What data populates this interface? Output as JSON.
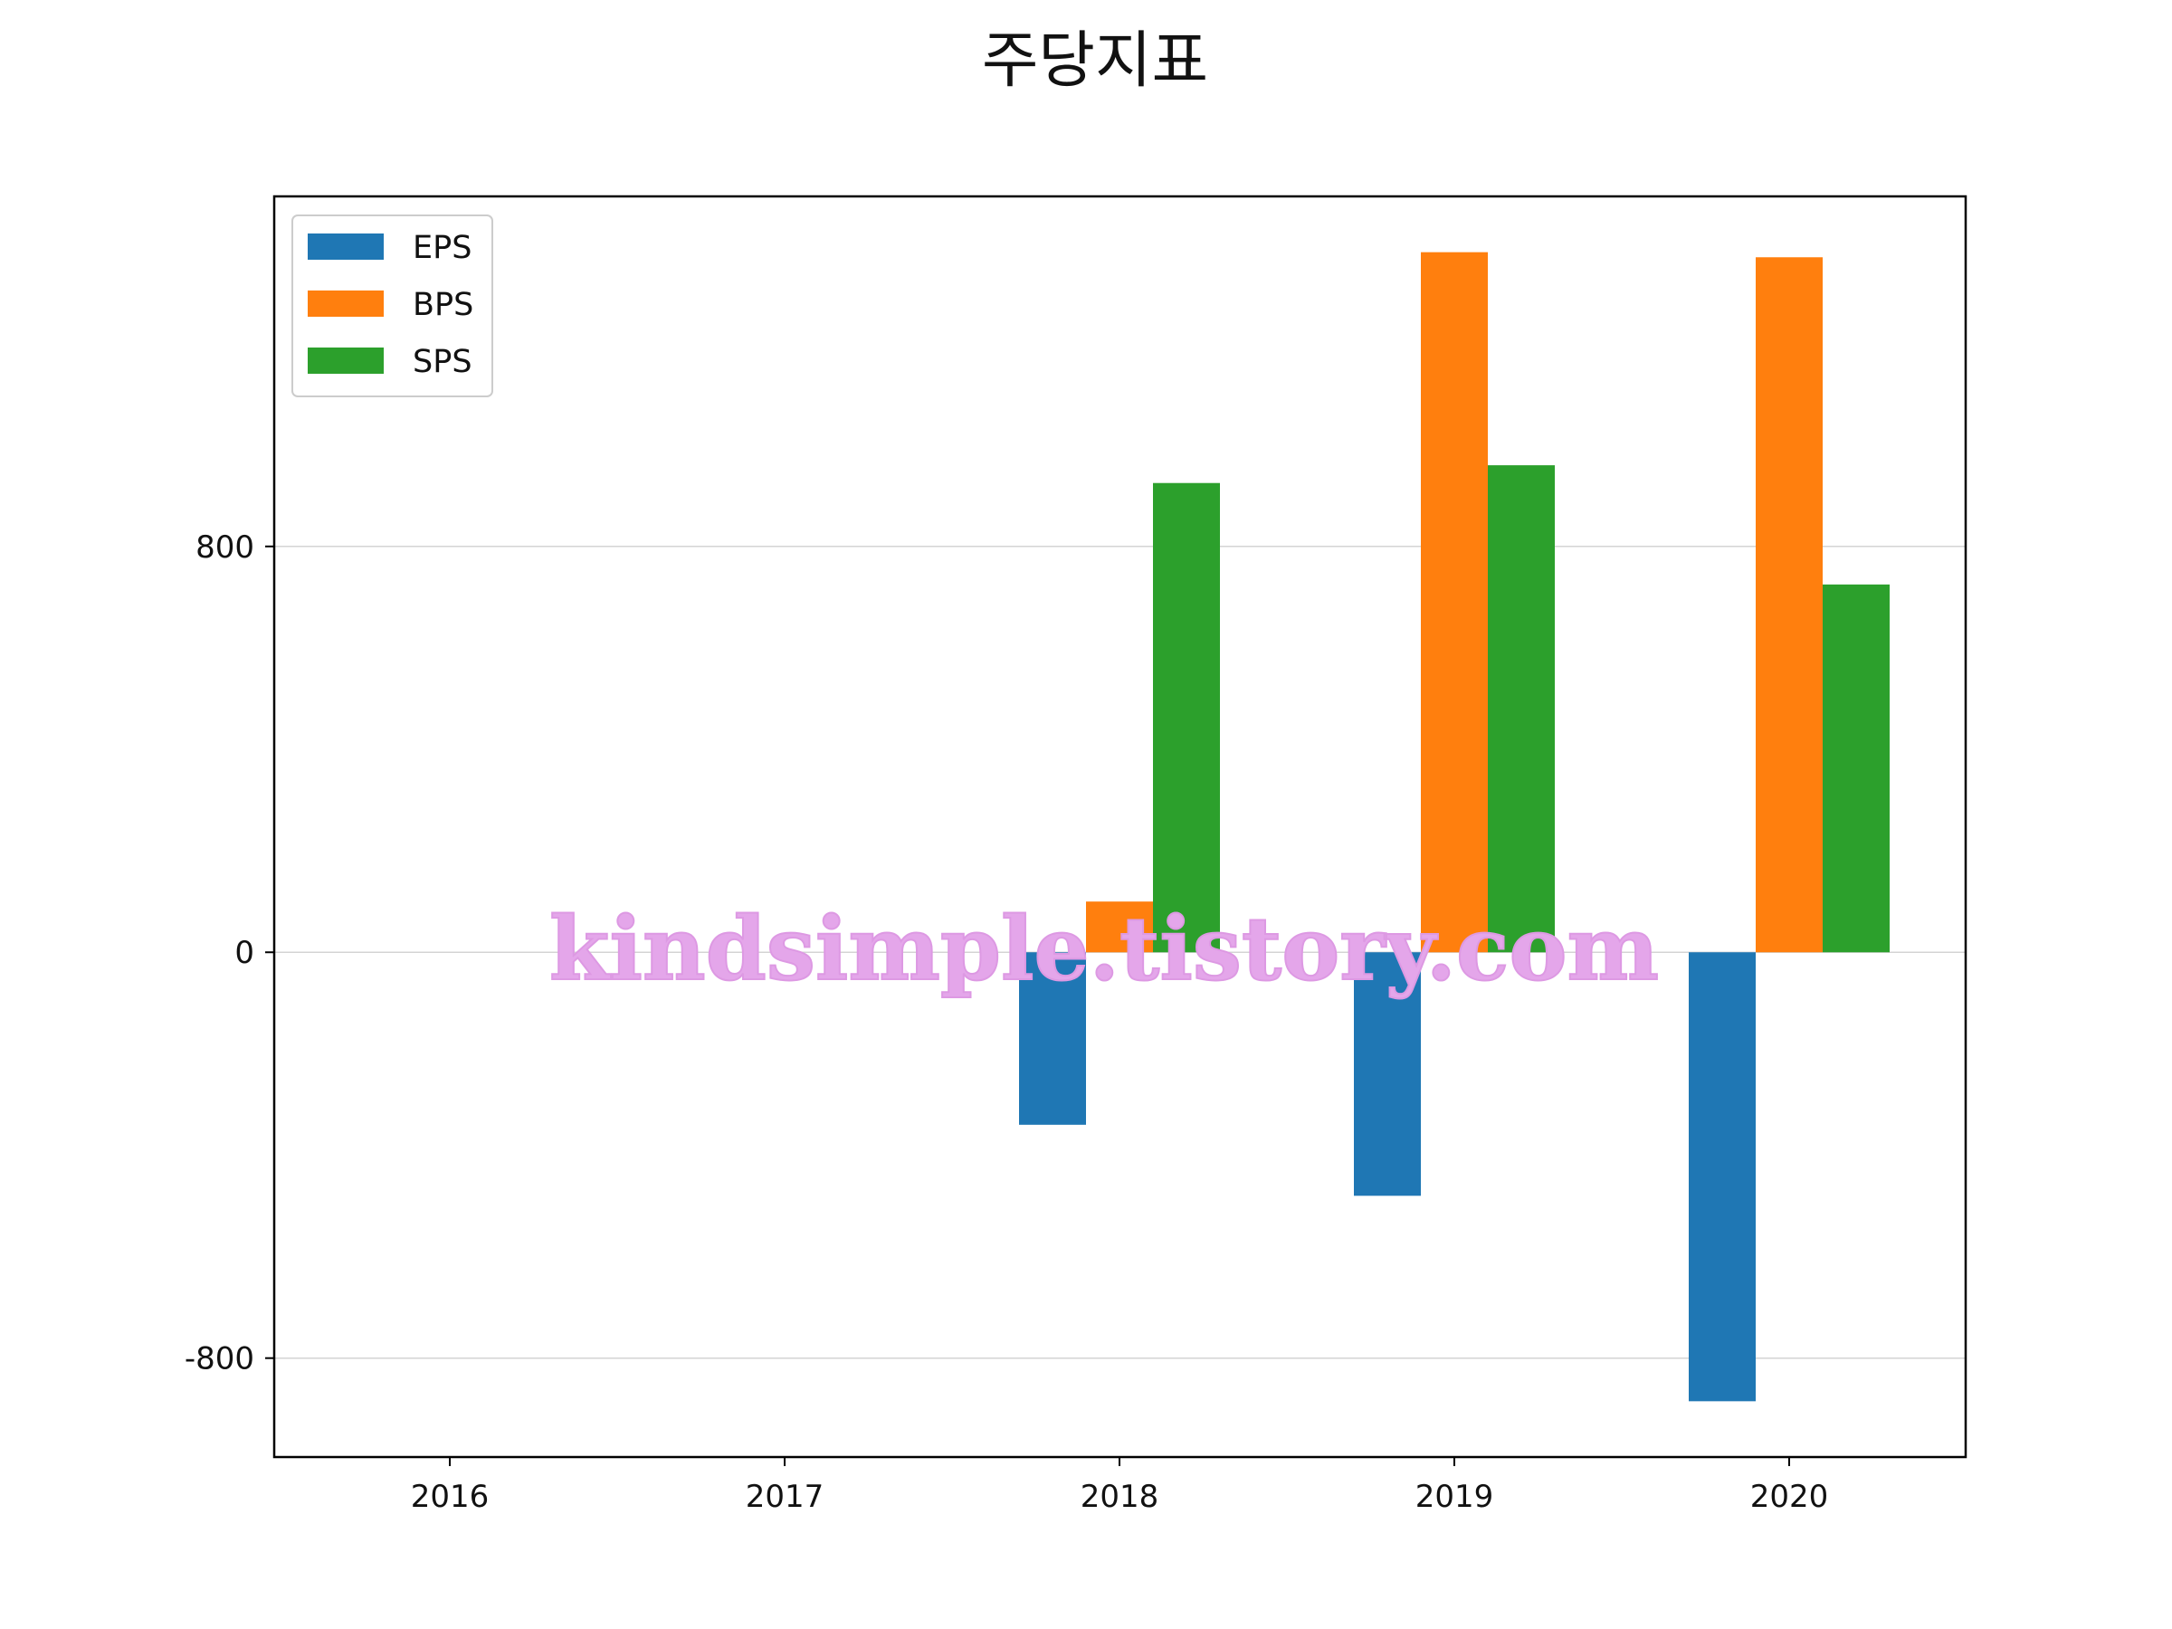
{
  "chart_data": {
    "type": "bar",
    "title": "주당지표",
    "xlabel": "",
    "ylabel": "",
    "categories": [
      "2016",
      "2017",
      "2018",
      "2019",
      "2020"
    ],
    "series": [
      {
        "name": "EPS",
        "color": "#1f77b4",
        "values": [
          null,
          null,
          -340,
          -480,
          -885
        ]
      },
      {
        "name": "BPS",
        "color": "#ff7f0e",
        "values": [
          null,
          null,
          100,
          1380,
          1370
        ]
      },
      {
        "name": "SPS",
        "color": "#2ca02c",
        "values": [
          null,
          null,
          925,
          960,
          725
        ]
      }
    ],
    "yticks": [
      -800,
      0,
      800
    ],
    "ylim": [
      -995,
      1490
    ],
    "grid": "horizontal",
    "legend_position": "upper-left"
  },
  "watermark": "kindsimple.tistory.com"
}
